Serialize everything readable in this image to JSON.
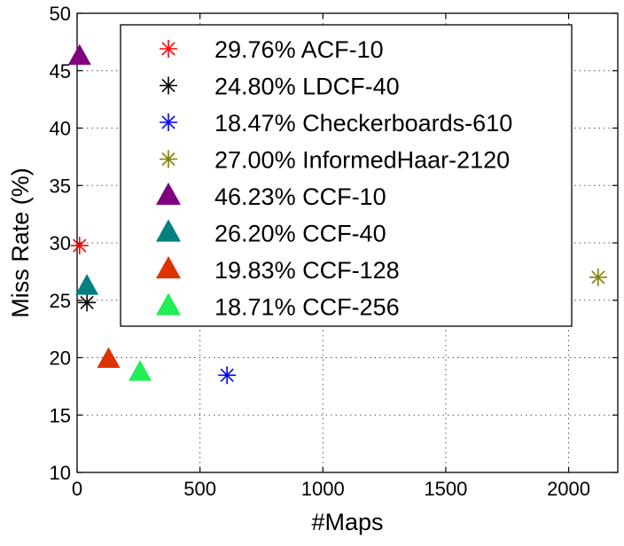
{
  "chart_data": {
    "type": "scatter",
    "title": "",
    "xlabel": "#Maps",
    "ylabel": "Miss Rate (%)",
    "xlim": [
      0,
      2200
    ],
    "ylim": [
      10,
      50
    ],
    "xticks": [
      0,
      500,
      1000,
      1500,
      2000
    ],
    "yticks": [
      10,
      15,
      20,
      25,
      30,
      35,
      40,
      45,
      50
    ],
    "grid": true,
    "legend_position": "top-right",
    "series": [
      {
        "name": "29.76% ACF-10",
        "marker": "star",
        "color": "#ff0000",
        "points": [
          {
            "x": 10,
            "y": 29.76
          }
        ]
      },
      {
        "name": "24.80% LDCF-40",
        "marker": "star",
        "color": "#000000",
        "points": [
          {
            "x": 40,
            "y": 24.8
          }
        ]
      },
      {
        "name": "18.47% Checkerboards-610",
        "marker": "star",
        "color": "#0000ff",
        "points": [
          {
            "x": 610,
            "y": 18.47
          }
        ]
      },
      {
        "name": "27.00% InformedHaar-2120",
        "marker": "star",
        "color": "#808000",
        "points": [
          {
            "x": 2120,
            "y": 27.0
          }
        ]
      },
      {
        "name": "46.23% CCF-10",
        "marker": "triangle",
        "color": "#800080",
        "points": [
          {
            "x": 10,
            "y": 46.23
          }
        ]
      },
      {
        "name": "26.20% CCF-40",
        "marker": "triangle",
        "color": "#008080",
        "points": [
          {
            "x": 40,
            "y": 26.2
          }
        ]
      },
      {
        "name": "19.83% CCF-128",
        "marker": "triangle",
        "color": "#dd3300",
        "points": [
          {
            "x": 128,
            "y": 19.83
          }
        ]
      },
      {
        "name": "18.71% CCF-256",
        "marker": "triangle",
        "color": "#22ee55",
        "points": [
          {
            "x": 256,
            "y": 18.71
          }
        ]
      }
    ]
  }
}
